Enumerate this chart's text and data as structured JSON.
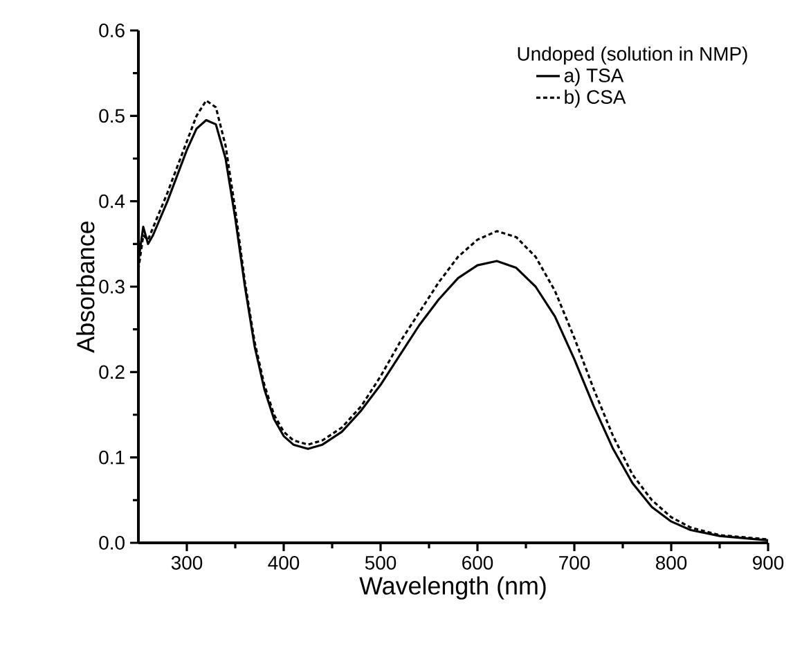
{
  "chart_data": {
    "type": "line",
    "xlabel": "Wavelength (nm)",
    "ylabel": "Absorbance",
    "legend_title": "Undoped (solution in NMP)",
    "legend": "top right",
    "xlim": [
      250,
      900
    ],
    "ylim": [
      0,
      0.6
    ],
    "xticks": [
      300,
      400,
      500,
      600,
      700,
      800,
      900
    ],
    "yticks": [
      {
        "value": 0,
        "label": "0.0"
      },
      {
        "value": 0.1,
        "label": "0.1"
      },
      {
        "value": 0.2,
        "label": "0.2"
      },
      {
        "value": 0.3,
        "label": "0.3"
      },
      {
        "value": 0.4,
        "label": "0.4"
      },
      {
        "value": 0.5,
        "label": "0.5"
      },
      {
        "value": 0.6,
        "label": "0.6"
      }
    ],
    "series": [
      {
        "name": "a) TSA",
        "color": "#000000",
        "line_style": "solid",
        "x": [
          250,
          255,
          260,
          265,
          280,
          300,
          310,
          320,
          330,
          340,
          350,
          360,
          370,
          380,
          390,
          400,
          410,
          425,
          440,
          460,
          480,
          500,
          520,
          540,
          560,
          580,
          600,
          620,
          640,
          660,
          680,
          700,
          720,
          740,
          760,
          780,
          800,
          820,
          850,
          900
        ],
        "values": [
          0.33,
          0.37,
          0.35,
          0.36,
          0.4,
          0.46,
          0.485,
          0.495,
          0.49,
          0.45,
          0.38,
          0.3,
          0.23,
          0.18,
          0.145,
          0.125,
          0.115,
          0.11,
          0.115,
          0.13,
          0.155,
          0.185,
          0.22,
          0.255,
          0.285,
          0.31,
          0.325,
          0.33,
          0.322,
          0.3,
          0.265,
          0.215,
          0.16,
          0.11,
          0.07,
          0.042,
          0.025,
          0.015,
          0.008,
          0.003
        ]
      },
      {
        "name": "b) CSA",
        "color": "#000000",
        "line_style": "dashed",
        "x": [
          250,
          255,
          260,
          280,
          300,
          310,
          320,
          330,
          340,
          350,
          360,
          370,
          380,
          390,
          400,
          410,
          425,
          440,
          460,
          480,
          500,
          520,
          540,
          560,
          580,
          600,
          620,
          640,
          660,
          680,
          700,
          720,
          740,
          760,
          780,
          800,
          820,
          850,
          900
        ],
        "values": [
          0.32,
          0.36,
          0.355,
          0.41,
          0.47,
          0.5,
          0.518,
          0.51,
          0.465,
          0.39,
          0.305,
          0.235,
          0.185,
          0.15,
          0.13,
          0.12,
          0.115,
          0.12,
          0.135,
          0.16,
          0.195,
          0.235,
          0.27,
          0.305,
          0.335,
          0.355,
          0.365,
          0.358,
          0.335,
          0.295,
          0.24,
          0.18,
          0.125,
          0.08,
          0.05,
          0.03,
          0.018,
          0.009,
          0.004
        ]
      }
    ]
  }
}
